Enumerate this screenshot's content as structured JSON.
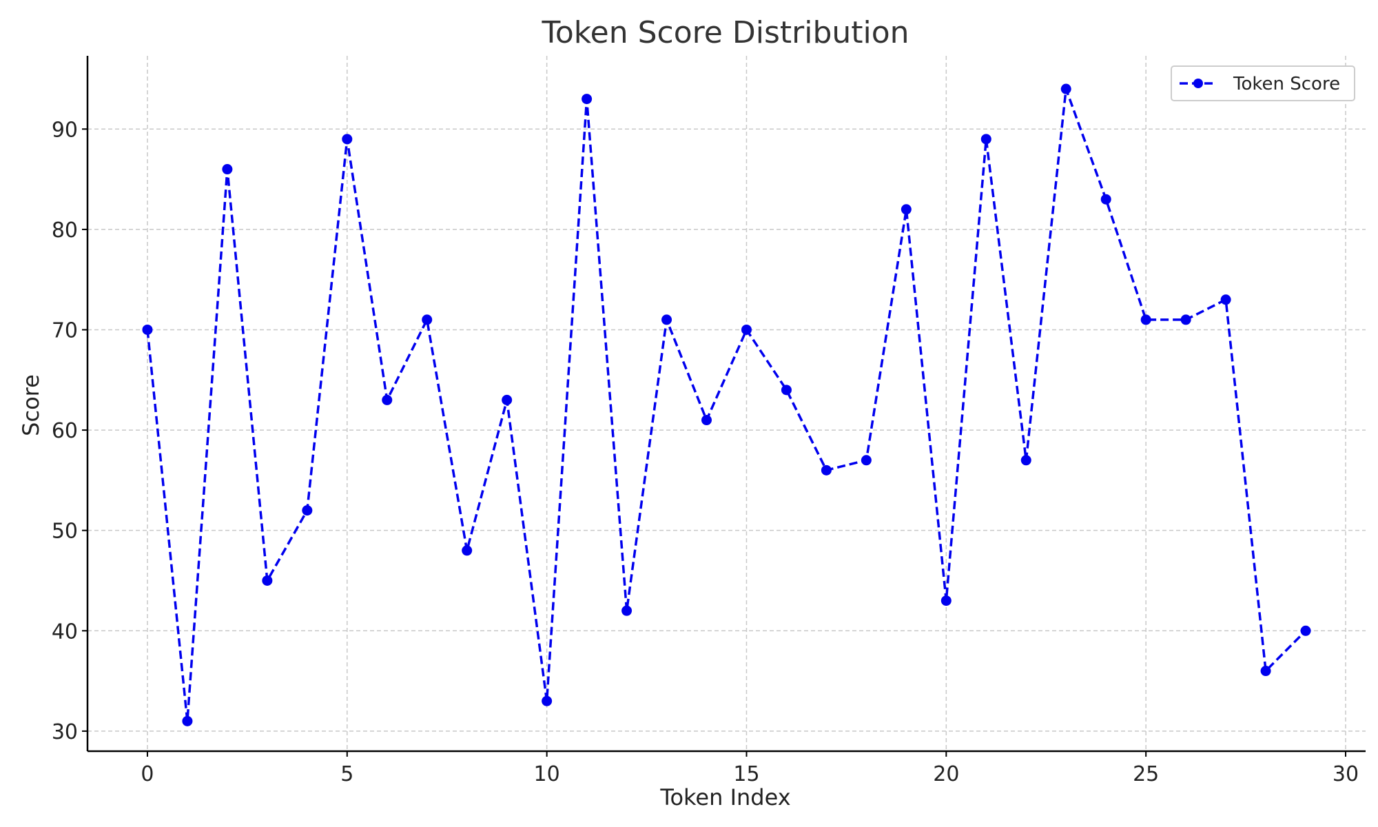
{
  "chart_data": {
    "type": "line",
    "title": "Token Score Distribution",
    "xlabel": "Token Index",
    "ylabel": "Score",
    "xlim": [
      -1.5,
      30.5
    ],
    "ylim": [
      28,
      97.3
    ],
    "xticks": [
      0,
      5,
      10,
      15,
      20,
      25,
      30
    ],
    "yticks": [
      30,
      40,
      50,
      60,
      70,
      80,
      90
    ],
    "grid": true,
    "legend_position": "top-right",
    "series": [
      {
        "name": "Token Score",
        "color": "#0000ee",
        "line_style": "dashed",
        "marker": "circle",
        "x": [
          0,
          1,
          2,
          3,
          4,
          5,
          6,
          7,
          8,
          9,
          10,
          11,
          12,
          13,
          14,
          15,
          16,
          17,
          18,
          19,
          20,
          21,
          22,
          23,
          24,
          25,
          26,
          27,
          28,
          29
        ],
        "y": [
          70,
          31,
          86,
          45,
          52,
          89,
          63,
          71,
          48,
          63,
          33,
          93,
          42,
          71,
          61,
          70,
          64,
          56,
          57,
          82,
          43,
          89,
          57,
          94,
          83,
          71,
          71,
          73,
          36,
          40
        ]
      }
    ]
  }
}
